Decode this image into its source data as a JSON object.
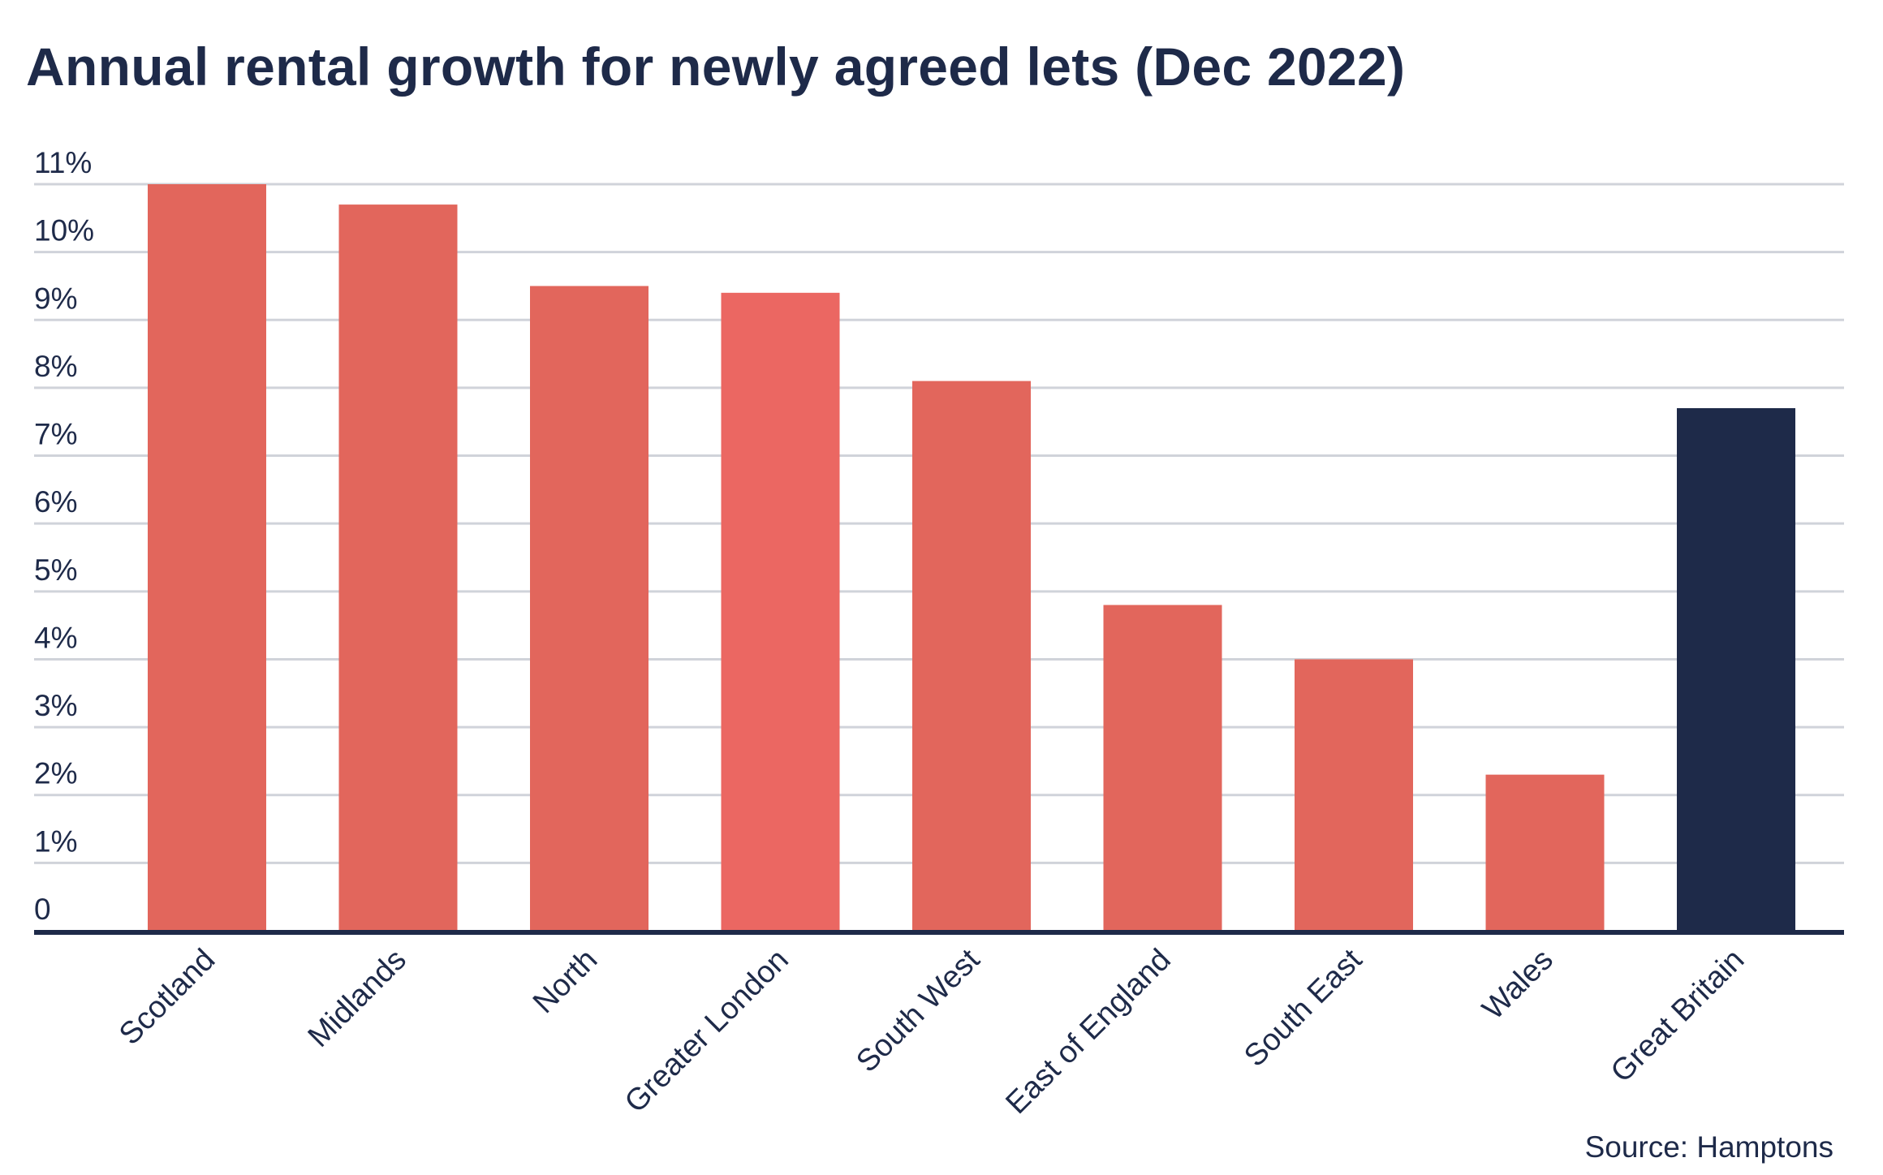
{
  "chart_data": {
    "type": "bar",
    "title": "Annual rental growth for newly agreed lets (Dec 2022)",
    "source": "Source: Hamptons",
    "categories": [
      "Scotland",
      "Midlands",
      "North",
      "Greater London",
      "South West",
      "East of England",
      "South East",
      "Wales",
      "Great Britain"
    ],
    "values": [
      11.0,
      10.7,
      9.5,
      9.4,
      8.1,
      4.8,
      4.0,
      2.3,
      7.7
    ],
    "colors": [
      "#e2665c",
      "#e2665c",
      "#e2665c",
      "#eb6762",
      "#e2665c",
      "#e2665c",
      "#e2665c",
      "#e2665c",
      "#1e2a49"
    ],
    "yticks": [
      "0",
      "1%",
      "2%",
      "3%",
      "4%",
      "5%",
      "6%",
      "7%",
      "8%",
      "9%",
      "10%",
      "11%"
    ],
    "ylim": [
      0,
      11
    ],
    "xlabel": "",
    "ylabel": "",
    "grid": true,
    "gridline_color": "#d0d3da",
    "axis_color": "#1e2a49"
  }
}
